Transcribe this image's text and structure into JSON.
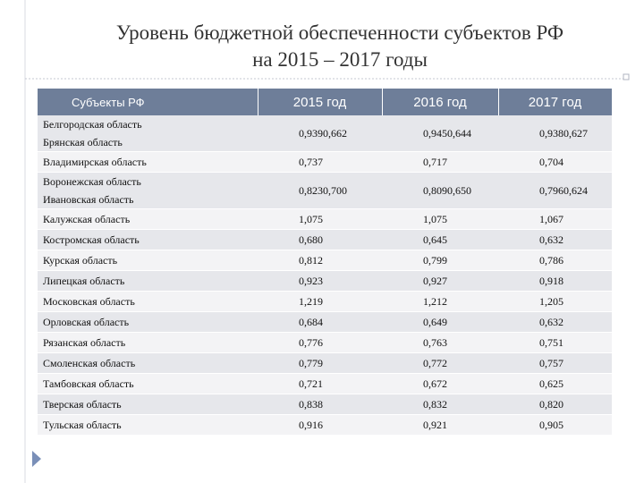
{
  "title": {
    "line1": "Уровень бюджетной обеспеченности субъектов РФ",
    "line2": "на 2015 – 2017 годы"
  },
  "table": {
    "headers": [
      "Субъекты РФ",
      "2015 год",
      "2016 год",
      "2017 год"
    ],
    "rows": [
      {
        "regions": [
          "Белгородская область",
          "Брянская область"
        ],
        "v2015": [
          "0,939",
          "0,662"
        ],
        "v2016": [
          "0,945",
          "0,644"
        ],
        "v2017": [
          "0,938",
          "0,627"
        ]
      },
      {
        "regions": [
          "Владимирская область"
        ],
        "v2015": [
          "0,737"
        ],
        "v2016": [
          "0,717"
        ],
        "v2017": [
          "0,704"
        ]
      },
      {
        "regions": [
          "Воронежская область",
          "Ивановская область"
        ],
        "v2015": [
          "0,823",
          "0,700"
        ],
        "v2016": [
          "0,809",
          "0,650"
        ],
        "v2017": [
          "0,796",
          "0,624"
        ]
      },
      {
        "regions": [
          "Калужская область"
        ],
        "v2015": [
          "1,075"
        ],
        "v2016": [
          "1,075"
        ],
        "v2017": [
          "1,067"
        ]
      },
      {
        "regions": [
          "Костромская область"
        ],
        "v2015": [
          "0,680"
        ],
        "v2016": [
          "0,645"
        ],
        "v2017": [
          "0,632"
        ]
      },
      {
        "regions": [
          "Курская область"
        ],
        "v2015": [
          "0,812"
        ],
        "v2016": [
          "0,799"
        ],
        "v2017": [
          "0,786"
        ]
      },
      {
        "regions": [
          "Липецкая область"
        ],
        "v2015": [
          "0,923"
        ],
        "v2016": [
          "0,927"
        ],
        "v2017": [
          "0,918"
        ]
      },
      {
        "regions": [
          "Московская область"
        ],
        "v2015": [
          "1,219"
        ],
        "v2016": [
          "1,212"
        ],
        "v2017": [
          "1,205"
        ]
      },
      {
        "regions": [
          "Орловская область"
        ],
        "v2015": [
          "0,684"
        ],
        "v2016": [
          "0,649"
        ],
        "v2017": [
          "0,632"
        ]
      },
      {
        "regions": [
          "Рязанская область"
        ],
        "v2015": [
          "0,776"
        ],
        "v2016": [
          "0,763"
        ],
        "v2017": [
          "0,751"
        ]
      },
      {
        "regions": [
          "Смоленская область"
        ],
        "v2015": [
          "0,779"
        ],
        "v2016": [
          "0,772"
        ],
        "v2017": [
          "0,757"
        ]
      },
      {
        "regions": [
          "Тамбовская область"
        ],
        "v2015": [
          "0,721"
        ],
        "v2016": [
          "0,672"
        ],
        "v2017": [
          "0,625"
        ]
      },
      {
        "regions": [
          "Тверская область"
        ],
        "v2015": [
          "0,838"
        ],
        "v2016": [
          "0,832"
        ],
        "v2017": [
          "0,820"
        ]
      },
      {
        "regions": [
          "Тульская область"
        ],
        "v2015": [
          "0,916"
        ],
        "v2016": [
          "0,921"
        ],
        "v2017": [
          "0,905"
        ]
      }
    ]
  },
  "colors": {
    "header_bg": "#6e7e99",
    "row_shade": "#e6e7eb",
    "row_light": "#f3f3f5",
    "accent_arrow": "#7a8fb8"
  },
  "icons": {
    "slide_marker": "triangle-arrow-icon"
  }
}
